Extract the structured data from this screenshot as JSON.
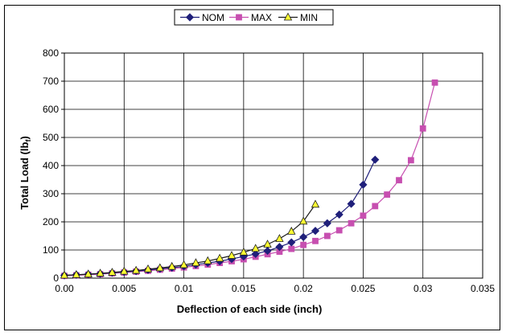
{
  "chart_data": {
    "type": "line",
    "xlabel": "Deflection of each side (inch)",
    "ylabel": "Total Load (lb",
    "ylabel_sub": "f",
    "ylabel_close": ")",
    "xlim": [
      0,
      0.035
    ],
    "ylim": [
      0,
      800
    ],
    "xticks": [
      0,
      0.005,
      0.01,
      0.015,
      0.02,
      0.025,
      0.03,
      0.035
    ],
    "xtick_labels": [
      "0.00",
      "0.005",
      "0.01",
      "0.015",
      "0.02",
      "0.025",
      "0.03",
      "0.035"
    ],
    "yticks": [
      0,
      100,
      200,
      300,
      400,
      500,
      600,
      700,
      800
    ],
    "ytick_labels": [
      "0",
      "100",
      "200",
      "300",
      "400",
      "500",
      "600",
      "700",
      "800"
    ],
    "grid": true,
    "legend_position": "top-center",
    "series": [
      {
        "name": "NOM",
        "color": "#1f1f7a",
        "marker": "diamond",
        "x": [
          0.0,
          0.001,
          0.002,
          0.003,
          0.004,
          0.005,
          0.006,
          0.007,
          0.008,
          0.009,
          0.01,
          0.011,
          0.012,
          0.013,
          0.014,
          0.015,
          0.016,
          0.017,
          0.018,
          0.019,
          0.02,
          0.021,
          0.022,
          0.023,
          0.024,
          0.025,
          0.026
        ],
        "y": [
          10,
          12,
          14,
          16,
          19,
          22,
          25,
          29,
          33,
          37,
          42,
          48,
          54,
          60,
          68,
          77,
          86,
          97,
          111,
          127,
          146,
          168,
          195,
          226,
          264,
          332,
          421
        ]
      },
      {
        "name": "MAX",
        "color": "#c74fb0",
        "marker": "square",
        "x": [
          0.0,
          0.001,
          0.002,
          0.003,
          0.004,
          0.005,
          0.006,
          0.007,
          0.008,
          0.009,
          0.01,
          0.011,
          0.012,
          0.013,
          0.014,
          0.015,
          0.016,
          0.017,
          0.018,
          0.019,
          0.02,
          0.021,
          0.022,
          0.023,
          0.024,
          0.025,
          0.026,
          0.027,
          0.028,
          0.029,
          0.03,
          0.031
        ],
        "y": [
          8,
          10,
          12,
          14,
          17,
          20,
          23,
          26,
          30,
          34,
          38,
          43,
          48,
          54,
          60,
          67,
          76,
          85,
          94,
          104,
          118,
          132,
          150,
          170,
          195,
          222,
          256,
          297,
          348,
          419,
          532,
          695
        ]
      },
      {
        "name": "MIN",
        "color": "#1a1a1a",
        "fill": "#ffff33",
        "marker": "triangle",
        "x": [
          0.0,
          0.001,
          0.002,
          0.003,
          0.004,
          0.005,
          0.006,
          0.007,
          0.008,
          0.009,
          0.01,
          0.011,
          0.012,
          0.013,
          0.014,
          0.015,
          0.016,
          0.017,
          0.018,
          0.019,
          0.02,
          0.021
        ],
        "y": [
          10,
          12,
          14,
          17,
          20,
          24,
          27,
          32,
          36,
          41,
          47,
          54,
          61,
          70,
          80,
          92,
          105,
          120,
          140,
          166,
          202,
          262
        ]
      }
    ]
  }
}
